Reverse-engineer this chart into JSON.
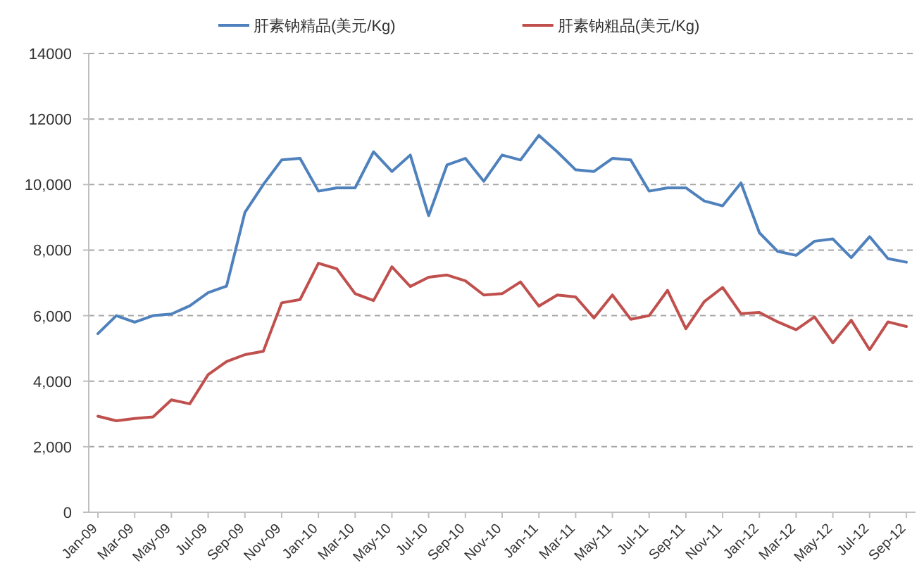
{
  "chart_data": {
    "type": "line",
    "categories": [
      "Jan-09",
      null,
      "Mar-09",
      null,
      "May-09",
      null,
      "Jul-09",
      null,
      "Sep-09",
      null,
      "Nov-09",
      null,
      "Jan-10",
      null,
      "Mar-10",
      null,
      "May-10",
      null,
      "Jul-10",
      null,
      "Sep-10",
      null,
      "Nov-10",
      null,
      "Jan-11",
      null,
      "Mar-11",
      null,
      "May-11",
      null,
      "Jul-11",
      null,
      "Sep-11",
      null,
      "Nov-11",
      null,
      "Jan-12",
      null,
      "Mar-12",
      null,
      "May-12",
      null,
      "Jul-12",
      null,
      "Sep-12"
    ],
    "series": [
      {
        "name": "肝素钠精品(美元/Kg)",
        "color": "#4f81bd",
        "values": [
          5450,
          6000,
          5800,
          6000,
          6050,
          6300,
          6700,
          6900,
          9150,
          10000,
          10750,
          10800,
          9800,
          9900,
          9900,
          11000,
          10400,
          10900,
          9050,
          10600,
          10800,
          10100,
          10900,
          10750,
          11500,
          11000,
          10450,
          10400,
          10800,
          10750,
          9800,
          9900,
          9900,
          9500,
          9350,
          10050,
          8530,
          7960,
          7840,
          8270,
          8340,
          7770,
          8410,
          7740,
          7630
        ]
      },
      {
        "name": "肝素钠粗品(美元/Kg)",
        "color": "#c0504d",
        "values": [
          2930,
          2790,
          2860,
          2910,
          3430,
          3310,
          4200,
          4600,
          4810,
          4910,
          6390,
          6490,
          7600,
          7430,
          6670,
          6460,
          7490,
          6890,
          7170,
          7240,
          7060,
          6630,
          6670,
          7030,
          6290,
          6630,
          6570,
          5930,
          6630,
          5890,
          6000,
          6770,
          5600,
          6430,
          6860,
          6060,
          6100,
          5810,
          5570,
          5960,
          5170,
          5860,
          4960,
          5810,
          5670
        ]
      }
    ],
    "ylim": [
      0,
      14000
    ],
    "yticks": [
      0,
      {
        "value": 2000,
        "label": "2,000"
      },
      {
        "value": 4000,
        "label": "4,000"
      },
      {
        "value": 6000,
        "label": "6,000"
      },
      {
        "value": 8000,
        "label": "8,000"
      },
      {
        "value": 10000,
        "label": "10,000"
      },
      12000,
      14000
    ],
    "grid": "y",
    "legend": "top"
  }
}
